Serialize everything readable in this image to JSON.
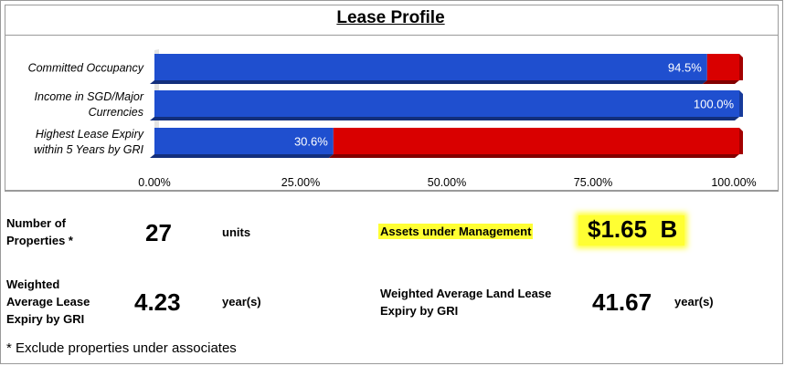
{
  "chart_data": {
    "type": "bar",
    "orientation": "horizontal",
    "stacked": true,
    "title": "Lease Profile",
    "categories": [
      [
        "Committed Occupancy"
      ],
      [
        "Income in SGD/Major",
        "Currencies"
      ],
      [
        "Highest Lease Expiry",
        "within 5 Years by GRI"
      ]
    ],
    "series": [
      {
        "values": [
          94.5,
          100.0,
          30.6
        ],
        "color": "#1f4fcf"
      },
      {
        "values": [
          5.5,
          0.0,
          69.4
        ],
        "color": "#d90000"
      }
    ],
    "data_labels": [
      "94.5%",
      "100.0%",
      "30.6%"
    ],
    "xlim": [
      0,
      100
    ],
    "xticks": [
      "0.00%",
      "25.00%",
      "50.00%",
      "75.00%",
      "100.00%"
    ],
    "grid": false,
    "legend": "none"
  },
  "stats": {
    "properties": {
      "label_1": "Number of",
      "label_2": "Properties *",
      "value": "27",
      "unit": "units"
    },
    "aum": {
      "label": "Assets under Management",
      "value": "$1.65  B"
    },
    "wale": {
      "label_1": "Weighted",
      "label_2": "Average Lease",
      "label_3": "Expiry by GRI",
      "value": "4.23",
      "unit": "year(s)"
    },
    "land_wale": {
      "label_1": "Weighted Average Land Lease",
      "label_2": "Expiry by GRI",
      "value": "41.67",
      "unit": "year(s)"
    }
  },
  "footnote": "* Exclude properties under associates"
}
